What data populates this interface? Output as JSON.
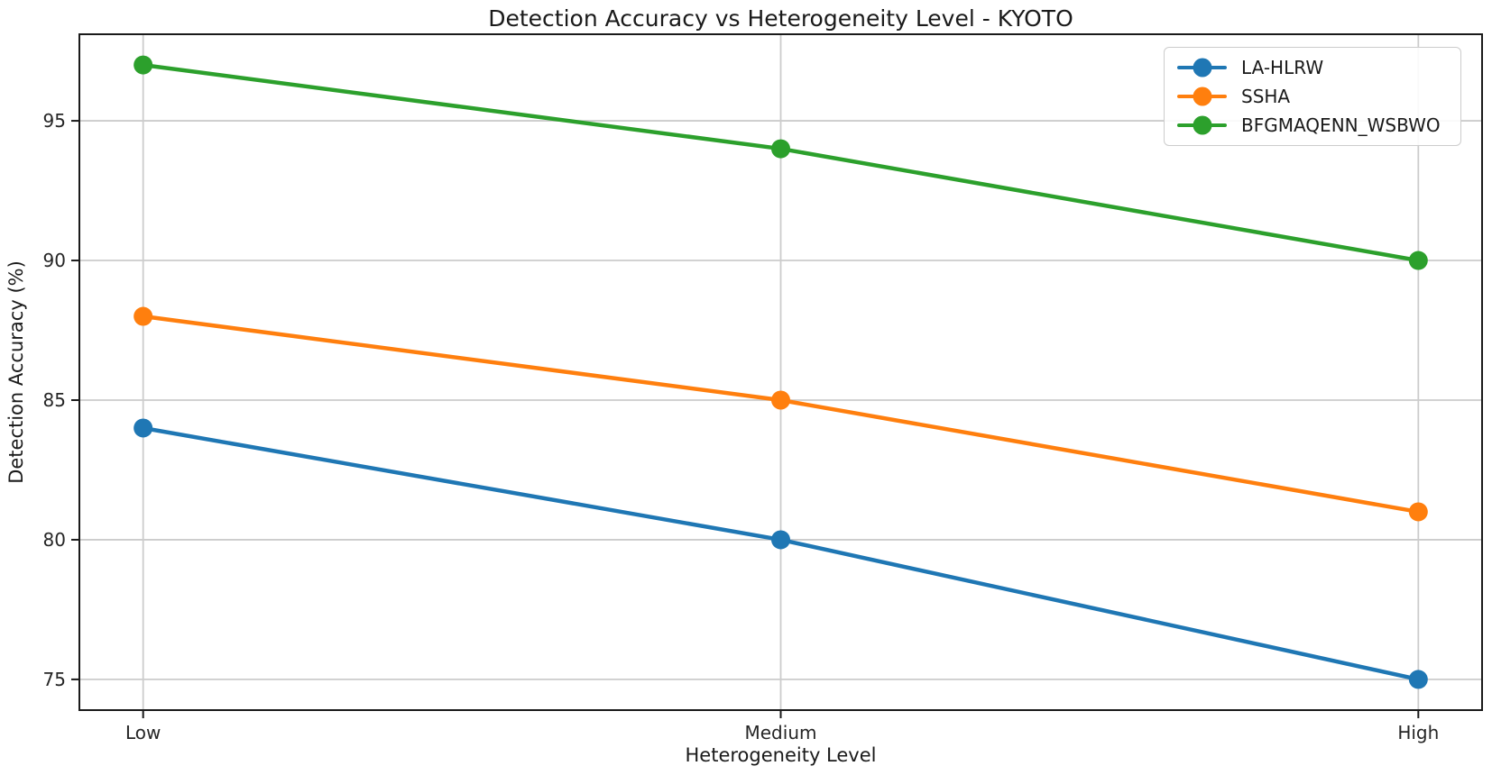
{
  "chart_data": {
    "type": "line",
    "title": "Detection Accuracy vs Heterogeneity Level - KYOTO",
    "xlabel": "Heterogeneity Level",
    "ylabel": "Detection Accuracy (%)",
    "categories": [
      "Low",
      "Medium",
      "High"
    ],
    "series": [
      {
        "name": "LA-HLRW",
        "color": "#1f77b4",
        "values": [
          84,
          80,
          75
        ]
      },
      {
        "name": "SSHA",
        "color": "#ff7f0e",
        "values": [
          88,
          85,
          81
        ]
      },
      {
        "name": "BFGMAQENN_WSBWO",
        "color": "#2ca02c",
        "values": [
          97,
          94,
          90
        ]
      }
    ],
    "yticks": [
      75,
      80,
      85,
      90,
      95
    ],
    "ylim": [
      73.9,
      98.1
    ],
    "xlim": [
      -0.1,
      2.1
    ],
    "grid": true,
    "legend_position": "upper right",
    "marker": "circle"
  }
}
